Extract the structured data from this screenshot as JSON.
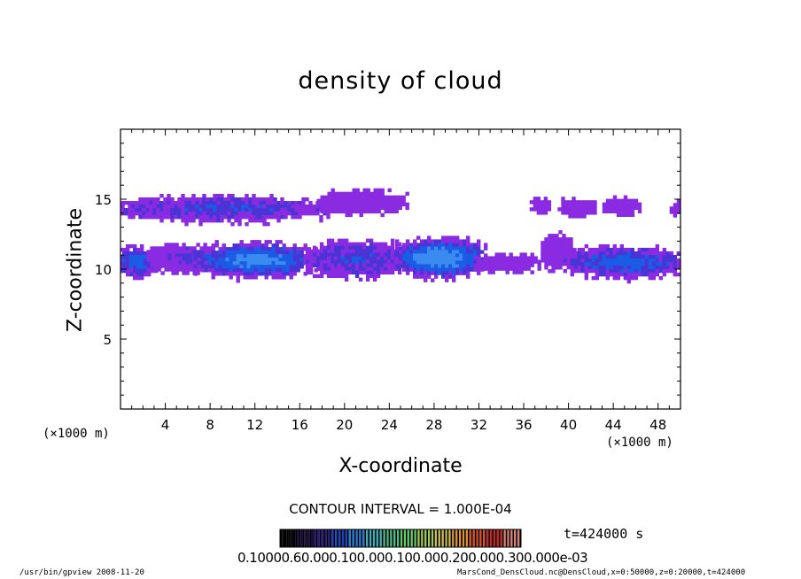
{
  "chart_data": {
    "type": "heatmap",
    "title": "density of cloud",
    "xlabel": "X-coordinate",
    "ylabel": "Z-coordinate",
    "x_unit_label": "(×1000 m)",
    "xlim": [
      0,
      50
    ],
    "ylim": [
      0,
      20
    ],
    "x_ticks": [
      4,
      8,
      12,
      16,
      20,
      24,
      28,
      32,
      36,
      40,
      44,
      48
    ],
    "y_ticks": [
      5,
      10,
      15
    ],
    "contour_interval_text": "CONTOUR INTERVAL = 1.000E-04",
    "time_text": "t=424000 s",
    "colorbar_text": "0.10000.60.000.100.000.100.000.200.000.300.000e-03",
    "cloud_layers": [
      {
        "x0": 0,
        "x1": 3,
        "z0": 9.6,
        "z1": 11.4,
        "core": 0.6
      },
      {
        "x0": 2.8,
        "x1": 8,
        "z0": 9.9,
        "z1": 11.5,
        "core": 0.2
      },
      {
        "x0": 7,
        "x1": 17,
        "z0": 9.6,
        "z1": 11.7,
        "core": 0.8
      },
      {
        "x0": 17,
        "x1": 25,
        "z0": 9.6,
        "z1": 11.8,
        "core": 0.35
      },
      {
        "x0": 25,
        "x1": 32,
        "z0": 9.6,
        "z1": 12,
        "core": 1.0
      },
      {
        "x0": 32,
        "x1": 37,
        "z0": 10.0,
        "z1": 10.8,
        "core": 0.05
      },
      {
        "x0": 38,
        "x1": 40,
        "z0": 10.2,
        "z1": 12.4,
        "core": 0.05
      },
      {
        "x0": 40,
        "x1": 50,
        "z0": 9.6,
        "z1": 11.4,
        "core": 0.55
      },
      {
        "x0": 0.5,
        "x1": 18,
        "z0": 13.6,
        "z1": 15.0,
        "core": 0.35
      },
      {
        "x0": 18,
        "x1": 25,
        "z0": 14.2,
        "z1": 15.4,
        "core": 0.05
      },
      {
        "x0": 37,
        "x1": 38,
        "z0": 14.2,
        "z1": 14.8,
        "core": 0.0
      },
      {
        "x0": 39.5,
        "x1": 42,
        "z0": 14.0,
        "z1": 14.8,
        "core": 0.0
      },
      {
        "x0": 43.5,
        "x1": 46,
        "z0": 14.0,
        "z1": 14.9,
        "core": 0.05
      },
      {
        "x0": 49.5,
        "x1": 50,
        "z0": 14.0,
        "z1": 14.6,
        "core": 0.0
      }
    ],
    "colors": {
      "low": "#8a2be2",
      "mid": "#4a34d6",
      "high": "#1a5ce6",
      "peak": "#3a8af0",
      "frame": "#000000"
    }
  },
  "footer": {
    "left": "/usr/bin/gpview  2008-11-20",
    "right": "MarsCond_DensCloud.nc@DensCloud,x=0:50000,z=0:20000,t=424000"
  }
}
